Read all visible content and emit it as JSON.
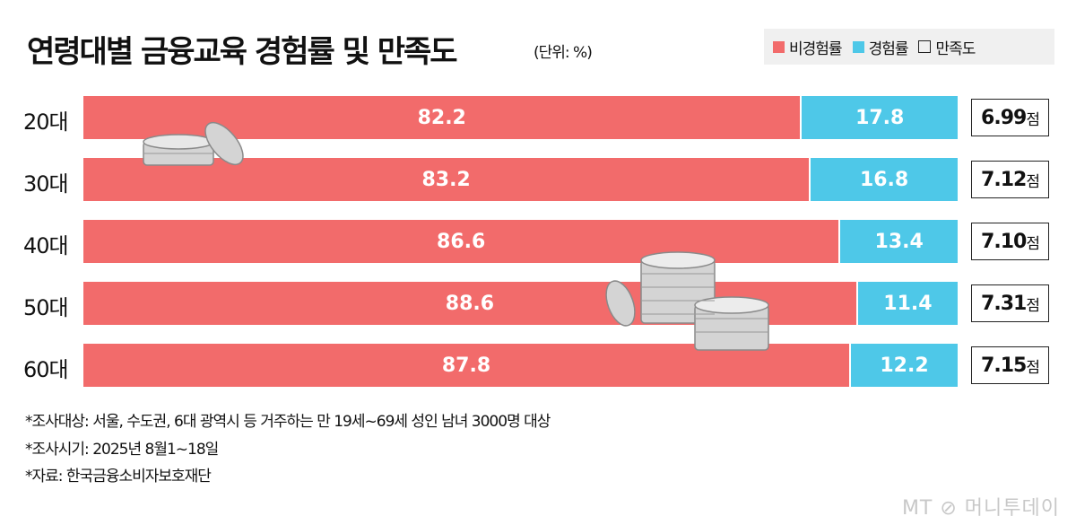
{
  "title": "연령대별 금융교육 경험률 및 만족도",
  "unit": "(단위: %)",
  "legend": {
    "non_experience": "비경험률",
    "experience": "경험률",
    "satisfaction": "만족도"
  },
  "colors": {
    "non_experience": "#f26b6b",
    "experience": "#4ec8e8"
  },
  "score_suffix": "점",
  "chart_data": {
    "type": "bar",
    "stacked": true,
    "orientation": "horizontal",
    "title": "연령대별 금융교육 경험률 및 만족도",
    "unit": "%",
    "categories": [
      "20대",
      "30대",
      "40대",
      "50대",
      "60대"
    ],
    "series": [
      {
        "name": "비경험률",
        "values": [
          82.2,
          83.2,
          86.6,
          88.6,
          87.8
        ]
      },
      {
        "name": "경험률",
        "values": [
          17.8,
          16.8,
          13.4,
          11.4,
          12.2
        ]
      }
    ],
    "satisfaction": {
      "name": "만족도",
      "values": [
        "6.99",
        "7.12",
        "7.10",
        "7.31",
        "7.15"
      ]
    },
    "xlim": [
      0,
      100
    ],
    "legend_position": "top-right"
  },
  "notes": [
    "*조사대상: 서울, 수도권, 6대 광역시 등 거주하는 만 19세~69세 성인 남녀 3000명 대상",
    "*조사시기: 2025년 8월1~18일",
    "*자료: 한국금융소비자보호재단"
  ],
  "logo": "MT ⊘ 머니투데이"
}
